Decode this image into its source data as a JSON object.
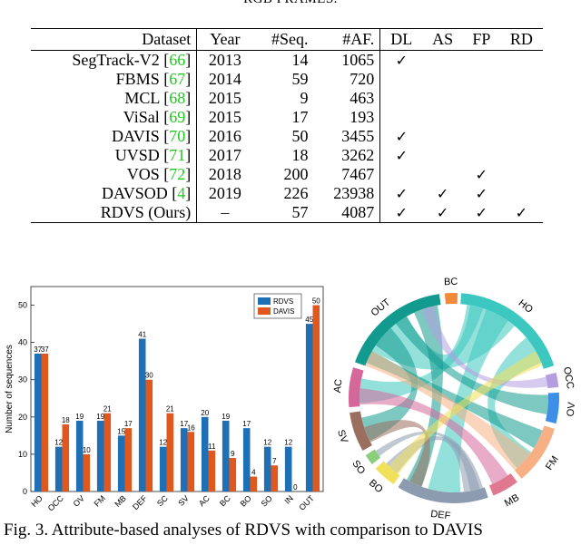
{
  "table_caption_partial": "RGB FRAMES.",
  "table": {
    "headers": [
      "Dataset",
      "Year",
      "#Seq.",
      "#AF.",
      "DL",
      "AS",
      "FP",
      "RD"
    ],
    "rows": [
      {
        "name": "SegTrack-V2",
        "ref": "66",
        "year": "2013",
        "seq": "14",
        "af": "1065",
        "dl": "✓",
        "as": "",
        "fp": "",
        "rd": ""
      },
      {
        "name": "FBMS",
        "ref": "67",
        "year": "2014",
        "seq": "59",
        "af": "720",
        "dl": "",
        "as": "",
        "fp": "",
        "rd": ""
      },
      {
        "name": "MCL",
        "ref": "68",
        "year": "2015",
        "seq": "9",
        "af": "463",
        "dl": "",
        "as": "",
        "fp": "",
        "rd": ""
      },
      {
        "name": "ViSal",
        "ref": "69",
        "year": "2015",
        "seq": "17",
        "af": "193",
        "dl": "",
        "as": "",
        "fp": "",
        "rd": ""
      },
      {
        "name": "DAVIS",
        "ref": "70",
        "year": "2016",
        "seq": "50",
        "af": "3455",
        "dl": "✓",
        "as": "",
        "fp": "",
        "rd": ""
      },
      {
        "name": "UVSD",
        "ref": "71",
        "year": "2017",
        "seq": "18",
        "af": "3262",
        "dl": "✓",
        "as": "",
        "fp": "",
        "rd": ""
      },
      {
        "name": "VOS",
        "ref": "72",
        "year": "2018",
        "seq": "200",
        "af": "7467",
        "dl": "",
        "as": "",
        "fp": "✓",
        "rd": ""
      },
      {
        "name": "DAVSOD",
        "ref": "4",
        "year": "2019",
        "seq": "226",
        "af": "23938",
        "dl": "✓",
        "as": "✓",
        "fp": "✓",
        "rd": ""
      },
      {
        "name": "RDVS (Ours)",
        "ref": "",
        "year": "–",
        "seq": "57",
        "af": "4087",
        "dl": "✓",
        "as": "✓",
        "fp": "✓",
        "rd": "✓"
      }
    ]
  },
  "chart_data": [
    {
      "type": "bar",
      "title": "",
      "xlabel": "",
      "ylabel": "Number of sequences",
      "ylim": [
        0,
        55
      ],
      "yticks": [
        0,
        10,
        20,
        30,
        40,
        50
      ],
      "categories": [
        "HO",
        "OCC",
        "OV",
        "FM",
        "MB",
        "DEF",
        "SC",
        "SV",
        "AC",
        "BC",
        "BO",
        "SO",
        "IN",
        "OUT"
      ],
      "series": [
        {
          "name": "RDVS",
          "color": "#1f6fb5",
          "values": [
            37,
            12,
            19,
            19,
            15,
            41,
            12,
            17,
            20,
            19,
            17,
            12,
            12,
            45
          ]
        },
        {
          "name": "DAVIS",
          "color": "#e0581e",
          "values": [
            37,
            18,
            10,
            21,
            17,
            30,
            21,
            16,
            11,
            9,
            4,
            7,
            0,
            50
          ]
        }
      ],
      "legend": "top-right"
    },
    {
      "type": "chord",
      "segments": [
        {
          "label": "HO",
          "color": "#3cc8c0"
        },
        {
          "label": "OCC",
          "color": "#b49ee0"
        },
        {
          "label": "OV",
          "color": "#3c8ee6"
        },
        {
          "label": "FM",
          "color": "#f6b083"
        },
        {
          "label": "MB",
          "color": "#e07890"
        },
        {
          "label": "DEF",
          "color": "#8c9bb0"
        },
        {
          "label": "BO",
          "color": "#f0e05a"
        },
        {
          "label": "SO",
          "color": "#8ccf7a"
        },
        {
          "label": "SV",
          "color": "#9a6f5f"
        },
        {
          "label": "AC",
          "color": "#d5689a"
        },
        {
          "label": "OUT",
          "color": "#139a8e"
        },
        {
          "label": "BC",
          "color": "#f08a3a"
        }
      ]
    }
  ],
  "figure_caption": "Fig. 3.  Attribute-based analyses of RDVS with comparison to DAVIS"
}
